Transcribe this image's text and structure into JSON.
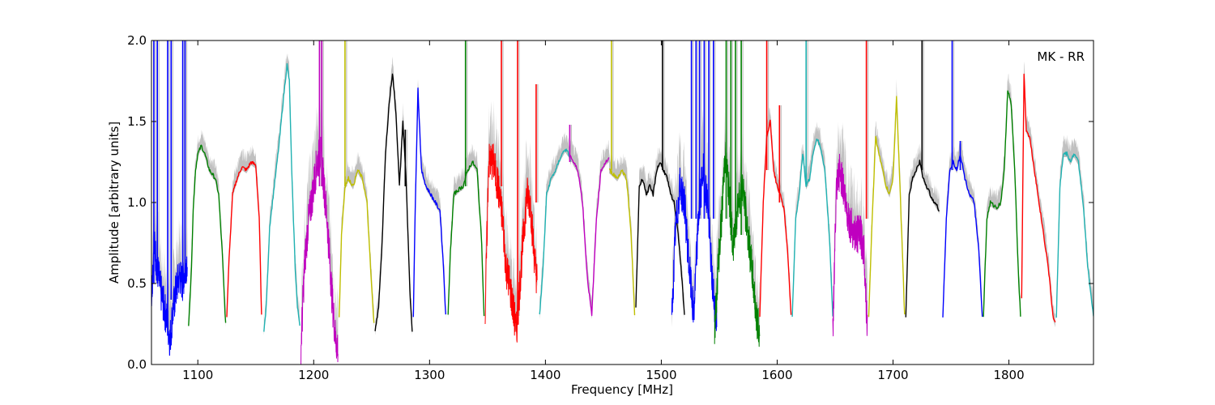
{
  "chart_data": {
    "type": "line",
    "annotation": "MK - RR",
    "xlabel": "Frequency [MHz]",
    "ylabel": "Amplitude [arbitrary units]",
    "xlim": [
      1060,
      1873
    ],
    "ylim": [
      0.0,
      2.0
    ],
    "xticks": [
      1100,
      1200,
      1300,
      1400,
      1500,
      1600,
      1700,
      1800
    ],
    "xtick_labels": [
      "1100",
      "1200",
      "1300",
      "1400",
      "1500",
      "1600",
      "1700",
      "1800"
    ],
    "yticks": [
      0.0,
      0.5,
      1.0,
      1.5,
      2.0
    ],
    "ytick_labels": [
      "0.0",
      "0.5",
      "1.0",
      "1.5",
      "2.0"
    ],
    "grid": false,
    "colors": {
      "background_raw": "#c0c0c0",
      "blue": "#0000ff",
      "green": "#008000",
      "red": "#ff0000",
      "cyan": "#20b2b2",
      "magenta": "#bf00bf",
      "olive": "#bfbf00",
      "black": "#000000"
    },
    "series": [
      {
        "color": "blue",
        "noisy": true,
        "x": [
          1060,
          1062,
          1065,
          1068,
          1071,
          1074,
          1076,
          1078,
          1081,
          1084,
          1087,
          1089,
          1091
        ],
        "y": [
          0.4,
          0.75,
          0.6,
          0.45,
          0.35,
          0.25,
          0.15,
          0.3,
          0.45,
          0.55,
          0.5,
          0.6,
          0.65
        ]
      },
      {
        "color": "green",
        "noisy": false,
        "x": [
          1092,
          1094,
          1096,
          1098,
          1100,
          1103,
          1106,
          1110,
          1115,
          1118,
          1121,
          1124
        ],
        "y": [
          0.25,
          0.5,
          0.95,
          1.2,
          1.3,
          1.35,
          1.3,
          1.2,
          1.15,
          1.05,
          0.7,
          0.25
        ]
      },
      {
        "color": "red",
        "noisy": false,
        "x": [
          1125,
          1127,
          1130,
          1134,
          1138,
          1142,
          1146,
          1150,
          1153,
          1155
        ],
        "y": [
          0.3,
          0.65,
          1.05,
          1.15,
          1.22,
          1.2,
          1.25,
          1.23,
          0.9,
          0.3
        ]
      },
      {
        "color": "cyan",
        "noisy": false,
        "x": [
          1157,
          1159,
          1162,
          1166,
          1170,
          1174,
          1177,
          1179,
          1181,
          1184,
          1186,
          1188
        ],
        "y": [
          0.2,
          0.35,
          0.85,
          1.1,
          1.35,
          1.65,
          1.85,
          1.75,
          1.2,
          0.6,
          0.35,
          0.25
        ]
      },
      {
        "color": "magenta",
        "noisy": true,
        "x": [
          1189,
          1192,
          1195,
          1199,
          1203,
          1206,
          1209,
          1212,
          1216,
          1219,
          1221
        ],
        "y": [
          0.1,
          0.6,
          0.85,
          1.05,
          1.25,
          1.3,
          1.1,
          0.85,
          0.4,
          0.15,
          0.1
        ]
      },
      {
        "color": "olive",
        "noisy": false,
        "x": [
          1222,
          1224,
          1227,
          1230,
          1234,
          1238,
          1242,
          1246,
          1249,
          1252
        ],
        "y": [
          0.3,
          0.8,
          1.1,
          1.15,
          1.1,
          1.2,
          1.15,
          1.0,
          0.6,
          0.25
        ]
      },
      {
        "color": "black",
        "noisy": false,
        "x": [
          1253,
          1256,
          1259,
          1262,
          1265,
          1268,
          1271,
          1274,
          1277,
          1280,
          1283,
          1285
        ],
        "y": [
          0.2,
          0.35,
          0.75,
          1.3,
          1.6,
          1.8,
          1.55,
          1.1,
          1.5,
          1.1,
          0.45,
          0.2
        ]
      },
      {
        "color": "blue",
        "noisy": false,
        "x": [
          1286,
          1288,
          1290,
          1293,
          1297,
          1301,
          1305,
          1309,
          1312,
          1314
        ],
        "y": [
          0.3,
          1.1,
          1.7,
          1.2,
          1.1,
          1.05,
          1.0,
          0.95,
          0.6,
          0.3
        ]
      },
      {
        "color": "green",
        "noisy": false,
        "x": [
          1316,
          1318,
          1321,
          1325,
          1329,
          1333,
          1337,
          1341,
          1345,
          1347
        ],
        "y": [
          0.3,
          0.7,
          1.05,
          1.08,
          1.1,
          1.2,
          1.25,
          1.2,
          0.75,
          0.3
        ]
      },
      {
        "color": "red",
        "noisy": true,
        "x": [
          1348,
          1351,
          1355,
          1359,
          1363,
          1366,
          1369,
          1372,
          1375,
          1378,
          1381,
          1384,
          1387,
          1390,
          1393
        ],
        "y": [
          0.3,
          1.25,
          1.25,
          1.1,
          0.9,
          0.6,
          0.5,
          0.35,
          0.2,
          0.5,
          0.8,
          1.05,
          1.0,
          0.7,
          0.5
        ]
      },
      {
        "color": "cyan",
        "noisy": false,
        "x": [
          1395,
          1398,
          1401,
          1405,
          1409,
          1413,
          1417,
          1420,
          1422
        ],
        "y": [
          0.3,
          0.6,
          1.05,
          1.15,
          1.2,
          1.28,
          1.33,
          1.3,
          1.25
        ]
      },
      {
        "color": "magenta",
        "noisy": false,
        "x": [
          1421,
          1424,
          1428,
          1432,
          1436,
          1440,
          1444,
          1448,
          1452,
          1455
        ],
        "y": [
          1.3,
          1.25,
          1.2,
          1.0,
          0.55,
          0.3,
          0.9,
          1.2,
          1.25,
          1.27
        ]
      },
      {
        "color": "olive",
        "noisy": false,
        "x": [
          1455,
          1458,
          1462,
          1466,
          1470,
          1474,
          1477
        ],
        "y": [
          1.2,
          1.18,
          1.15,
          1.2,
          1.15,
          0.8,
          0.3
        ]
      },
      {
        "color": "black",
        "noisy": false,
        "x": [
          1478,
          1481,
          1484,
          1487,
          1490,
          1493,
          1496,
          1499,
          1502,
          1505,
          1508,
          1511,
          1514,
          1517,
          1520
        ],
        "y": [
          0.35,
          1.1,
          1.15,
          1.05,
          1.1,
          1.05,
          1.2,
          1.25,
          1.2,
          1.15,
          1.05,
          1.0,
          0.85,
          0.6,
          0.3
        ]
      },
      {
        "color": "blue",
        "noisy": true,
        "x": [
          1509,
          1512,
          1516,
          1520,
          1524,
          1528,
          1532,
          1536,
          1540,
          1544,
          1548
        ],
        "y": [
          0.25,
          0.8,
          1.1,
          1.0,
          0.6,
          0.3,
          0.9,
          1.2,
          1.0,
          0.5,
          0.25
        ]
      },
      {
        "color": "green",
        "noisy": true,
        "x": [
          1546,
          1549,
          1552,
          1555,
          1558,
          1562,
          1566,
          1570,
          1574,
          1578,
          1582,
          1585
        ],
        "y": [
          0.2,
          0.6,
          0.9,
          1.3,
          1.1,
          0.7,
          1.0,
          1.1,
          0.85,
          0.6,
          0.3,
          0.17
        ]
      },
      {
        "color": "red",
        "noisy": false,
        "x": [
          1585,
          1588,
          1591,
          1594,
          1597,
          1600,
          1603,
          1606,
          1609,
          1612
        ],
        "y": [
          0.3,
          1.0,
          1.4,
          1.5,
          1.2,
          1.1,
          1.05,
          0.95,
          0.7,
          0.3
        ]
      },
      {
        "color": "cyan",
        "noisy": false,
        "x": [
          1613,
          1616,
          1619,
          1622,
          1625,
          1628,
          1631,
          1634,
          1637,
          1641,
          1645,
          1648
        ],
        "y": [
          0.3,
          0.9,
          1.05,
          1.3,
          1.1,
          1.15,
          1.3,
          1.4,
          1.35,
          1.2,
          0.8,
          0.3
        ]
      },
      {
        "color": "magenta",
        "noisy": true,
        "x": [
          1648,
          1651,
          1654,
          1657,
          1660,
          1664,
          1668,
          1672,
          1675,
          1678
        ],
        "y": [
          0.2,
          1.05,
          1.2,
          1.1,
          0.95,
          0.85,
          0.8,
          0.8,
          0.7,
          0.2
        ]
      },
      {
        "color": "olive",
        "noisy": false,
        "x": [
          1679,
          1682,
          1685,
          1688,
          1691,
          1694,
          1697,
          1700,
          1703,
          1706,
          1710
        ],
        "y": [
          0.3,
          0.9,
          1.4,
          1.3,
          1.2,
          1.1,
          1.05,
          1.15,
          1.65,
          1.1,
          0.3
        ]
      },
      {
        "color": "black",
        "noisy": false,
        "x": [
          1711,
          1714,
          1717,
          1720,
          1723,
          1726,
          1729,
          1732,
          1736,
          1740
        ],
        "y": [
          0.3,
          1.05,
          1.15,
          1.2,
          1.25,
          1.15,
          1.1,
          1.05,
          1.0,
          0.95
        ]
      },
      {
        "color": "blue",
        "noisy": false,
        "x": [
          1743,
          1746,
          1749,
          1752,
          1755,
          1758,
          1762,
          1766,
          1770,
          1774,
          1777
        ],
        "y": [
          0.3,
          0.9,
          1.2,
          1.25,
          1.2,
          1.3,
          1.15,
          1.05,
          1.0,
          0.7,
          0.3
        ]
      },
      {
        "color": "green",
        "noisy": false,
        "x": [
          1778,
          1781,
          1784,
          1787,
          1790,
          1793,
          1796,
          1799,
          1802,
          1805,
          1808,
          1810
        ],
        "y": [
          0.3,
          0.9,
          1.0,
          0.98,
          0.97,
          1.0,
          1.2,
          1.7,
          1.6,
          1.2,
          0.6,
          0.3
        ]
      },
      {
        "color": "red",
        "noisy": false,
        "x": [
          1811,
          1813,
          1815,
          1818,
          1822,
          1826,
          1830,
          1834,
          1838,
          1840
        ],
        "y": [
          0.4,
          1.8,
          1.45,
          1.4,
          1.2,
          1.0,
          0.8,
          0.6,
          0.3,
          0.25
        ]
      },
      {
        "color": "cyan",
        "noisy": false,
        "x": [
          1841,
          1844,
          1847,
          1850,
          1853,
          1856,
          1860,
          1864,
          1868,
          1873
        ],
        "y": [
          0.3,
          1.1,
          1.3,
          1.3,
          1.25,
          1.3,
          1.25,
          1.0,
          0.6,
          0.3
        ]
      }
    ],
    "spikes": [
      {
        "color": "blue",
        "x": 1062,
        "y0": 0.5,
        "y1": 2.0
      },
      {
        "color": "blue",
        "x": 1065,
        "y0": 0.5,
        "y1": 2.0
      },
      {
        "color": "blue",
        "x": 1074,
        "y0": 0.3,
        "y1": 2.0
      },
      {
        "color": "blue",
        "x": 1077,
        "y0": 0.4,
        "y1": 2.0
      },
      {
        "color": "blue",
        "x": 1087,
        "y0": 0.5,
        "y1": 2.0
      },
      {
        "color": "blue",
        "x": 1089,
        "y0": 0.5,
        "y1": 2.0
      },
      {
        "color": "magenta",
        "x": 1205,
        "y0": 1.1,
        "y1": 2.0
      },
      {
        "color": "magenta",
        "x": 1207,
        "y0": 1.1,
        "y1": 2.0
      },
      {
        "color": "olive",
        "x": 1227,
        "y0": 1.1,
        "y1": 2.0
      },
      {
        "color": "black",
        "x": 1279,
        "y0": 1.1,
        "y1": 1.45
      },
      {
        "color": "green",
        "x": 1331,
        "y0": 1.1,
        "y1": 2.0
      },
      {
        "color": "red",
        "x": 1362,
        "y0": 1.1,
        "y1": 2.0
      },
      {
        "color": "red",
        "x": 1376,
        "y0": 0.3,
        "y1": 2.0
      },
      {
        "color": "red",
        "x": 1392,
        "y0": 1.0,
        "y1": 1.73
      },
      {
        "color": "magenta",
        "x": 1421,
        "y0": 1.25,
        "y1": 1.48
      },
      {
        "color": "olive",
        "x": 1457,
        "y0": 1.2,
        "y1": 2.0
      },
      {
        "color": "black",
        "x": 1501,
        "y0": 1.2,
        "y1": 2.0
      },
      {
        "color": "blue",
        "x": 1526,
        "y0": 0.9,
        "y1": 2.0
      },
      {
        "color": "blue",
        "x": 1530,
        "y0": 0.9,
        "y1": 2.0
      },
      {
        "color": "blue",
        "x": 1533,
        "y0": 0.9,
        "y1": 2.0
      },
      {
        "color": "blue",
        "x": 1537,
        "y0": 0.9,
        "y1": 2.0
      },
      {
        "color": "blue",
        "x": 1541,
        "y0": 0.9,
        "y1": 2.0
      },
      {
        "color": "blue",
        "x": 1545,
        "y0": 0.9,
        "y1": 2.0
      },
      {
        "color": "green",
        "x": 1556,
        "y0": 0.9,
        "y1": 2.0
      },
      {
        "color": "green",
        "x": 1560,
        "y0": 0.8,
        "y1": 2.0
      },
      {
        "color": "green",
        "x": 1564,
        "y0": 0.8,
        "y1": 2.0
      },
      {
        "color": "green",
        "x": 1569,
        "y0": 0.8,
        "y1": 2.0
      },
      {
        "color": "red",
        "x": 1591,
        "y0": 1.2,
        "y1": 2.0
      },
      {
        "color": "red",
        "x": 1602,
        "y0": 1.0,
        "y1": 1.6
      },
      {
        "color": "cyan",
        "x": 1625,
        "y0": 1.1,
        "y1": 2.0
      },
      {
        "color": "red",
        "x": 1677,
        "y0": 0.9,
        "y1": 2.0
      },
      {
        "color": "black",
        "x": 1725,
        "y0": 1.2,
        "y1": 2.0
      },
      {
        "color": "blue",
        "x": 1751,
        "y0": 1.2,
        "y1": 2.0
      },
      {
        "color": "blue",
        "x": 1758,
        "y0": 1.2,
        "y1": 1.38
      }
    ]
  }
}
